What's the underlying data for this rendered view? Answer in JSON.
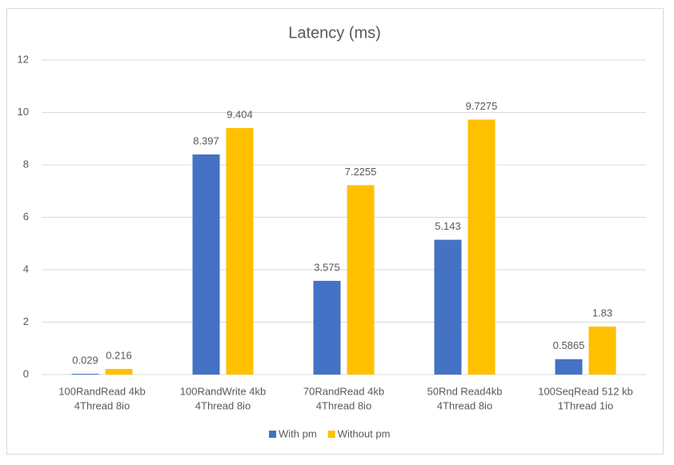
{
  "chart_data": {
    "type": "bar",
    "title": "Latency (ms)",
    "categories": [
      [
        "100RandRead 4kb",
        "4Thread 8io"
      ],
      [
        "100RandWrite 4kb",
        "4Thread 8io"
      ],
      [
        "70RandRead 4kb",
        "4Thread 8io"
      ],
      [
        "50Rnd Read4kb",
        "4Thread 8io"
      ],
      [
        "100SeqRead 512 kb",
        "1Thread 1io"
      ]
    ],
    "series": [
      {
        "name": "With pm",
        "color": "#4472c4",
        "values": [
          0.029,
          8.397,
          3.575,
          5.143,
          0.5865
        ]
      },
      {
        "name": "Without pm",
        "color": "#ffc000",
        "values": [
          0.216,
          9.404,
          7.2255,
          9.7275,
          1.83
        ]
      }
    ],
    "ylim": [
      0,
      12
    ],
    "yticks": [
      0,
      2,
      4,
      6,
      8,
      10,
      12
    ],
    "grid": true,
    "legend": "bottom"
  }
}
